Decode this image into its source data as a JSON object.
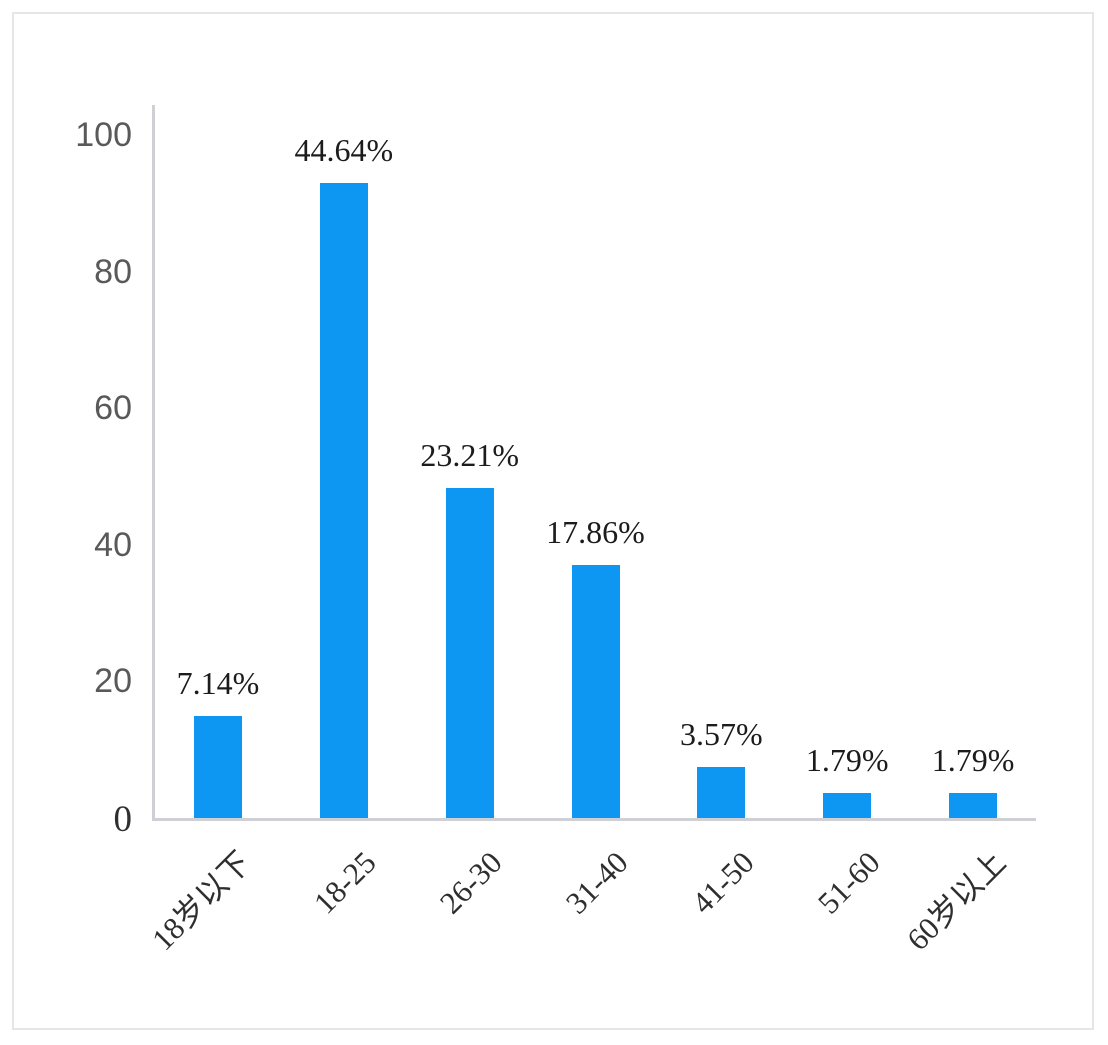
{
  "chart_data": {
    "type": "bar",
    "title": "",
    "xlabel": "",
    "ylabel": "",
    "categories": [
      "18岁以下",
      "18-25",
      "26-30",
      "31-40",
      "41-50",
      "51-60",
      "60岁以上"
    ],
    "values": [
      14.9,
      92.9,
      48.3,
      37.1,
      7.4,
      3.7,
      3.7
    ],
    "data_labels": [
      "7.14%",
      "44.64%",
      "23.21%",
      "17.86%",
      "3.57%",
      "1.79%",
      "1.79%"
    ],
    "percentages": [
      7.14,
      44.64,
      23.21,
      17.86,
      3.57,
      1.79,
      1.79
    ],
    "ylim": [
      0,
      100
    ],
    "yticks": [
      0,
      20,
      40,
      60,
      80,
      100
    ],
    "grid": false,
    "legend": false,
    "colors": {
      "bar": "#0d96f2",
      "axis_line": "#cfcfd6",
      "y_tick_text": "#595959",
      "data_label_text": "#1c1c1c",
      "category_text": "#2e2e2e",
      "frame_border": "#e6e6e9",
      "background": "#ffffff"
    }
  }
}
